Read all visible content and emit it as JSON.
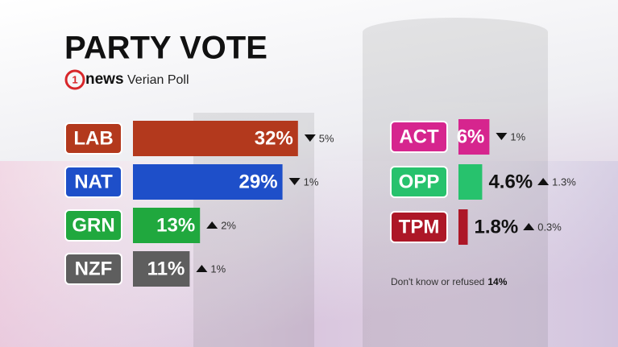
{
  "chart_data": {
    "type": "bar",
    "title": "PARTY VOTE",
    "logo_mark": "1",
    "logo_text": "news",
    "subtitle": "Verian Poll",
    "categories": [
      "LAB",
      "NAT",
      "GRN",
      "NZF",
      "ACT",
      "OPP",
      "TPM"
    ],
    "values": [
      32,
      29,
      13,
      11,
      6,
      4.6,
      1.8
    ],
    "value_labels": [
      "32%",
      "29%",
      "13%",
      "11%",
      "6%",
      "4.6%",
      "1.8%"
    ],
    "colors": [
      "#b3391d",
      "#1e4fc9",
      "#20a83e",
      "#5e5e5e",
      "#d6258e",
      "#27c26d",
      "#ad1727"
    ],
    "changes": [
      -5,
      -1,
      2,
      1,
      -1,
      1.3,
      0.3
    ],
    "change_labels": [
      "5%",
      "1%",
      "2%",
      "1%",
      "1%",
      "1.3%",
      "0.3%"
    ],
    "note": "Don't know or refused",
    "note_value": 14,
    "note_value_label": "14%"
  }
}
